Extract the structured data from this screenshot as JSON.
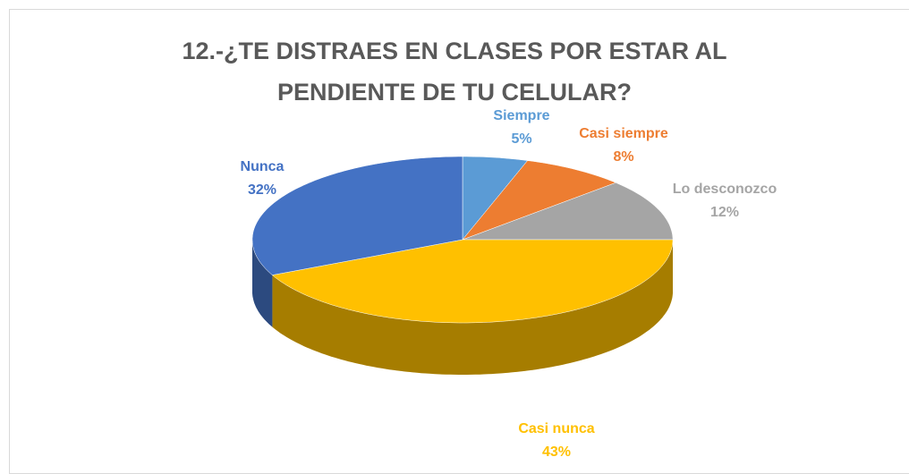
{
  "chart_data": {
    "type": "pie",
    "title": "12.-¿TE DISTRAES EN CLASES POR ESTAR AL PENDIENTE DE TU CELULAR?",
    "categories": [
      "Siempre",
      "Casi siempre",
      "Lo desconozco",
      "Casi nunca",
      "Nunca"
    ],
    "values": [
      5,
      8,
      12,
      43,
      32
    ],
    "value_labels": [
      "5%",
      "8%",
      "12%",
      "43%",
      "32%"
    ],
    "colors": [
      "#5b9bd5",
      "#ed7d31",
      "#a5a5a5",
      "#ffc000",
      "#4472c4"
    ],
    "three_d": true
  }
}
